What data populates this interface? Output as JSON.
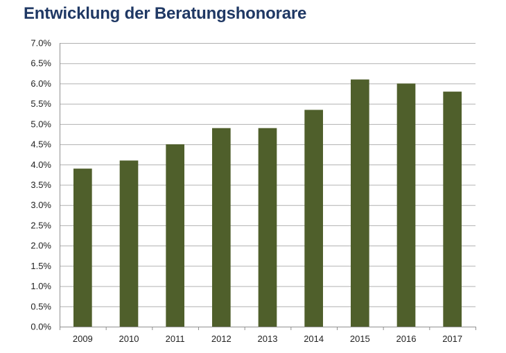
{
  "chart_data": {
    "type": "bar",
    "title": "Entwicklung der Beratungshonorare",
    "categories": [
      "2009",
      "2010",
      "2011",
      "2012",
      "2013",
      "2014",
      "2015",
      "2016",
      "2017"
    ],
    "values": [
      3.9,
      4.1,
      4.5,
      4.9,
      4.9,
      5.35,
      6.1,
      6.0,
      5.8
    ],
    "ylim": [
      0,
      7.0
    ],
    "yticks": [
      "0.0%",
      "0.5%",
      "1.0%",
      "1.5%",
      "2.0%",
      "2.5%",
      "3.0%",
      "3.5%",
      "4.0%",
      "4.5%",
      "5.0%",
      "5.5%",
      "6.0%",
      "6.5%",
      "7.0%"
    ],
    "ytick_values": [
      0,
      0.5,
      1.0,
      1.5,
      2.0,
      2.5,
      3.0,
      3.5,
      4.0,
      4.5,
      5.0,
      5.5,
      6.0,
      6.5,
      7.0
    ],
    "grid": true,
    "legend": "none",
    "bar_color": "#4f5f2b",
    "grid_color": "#b0b0b0",
    "axis_color": "#909090"
  }
}
